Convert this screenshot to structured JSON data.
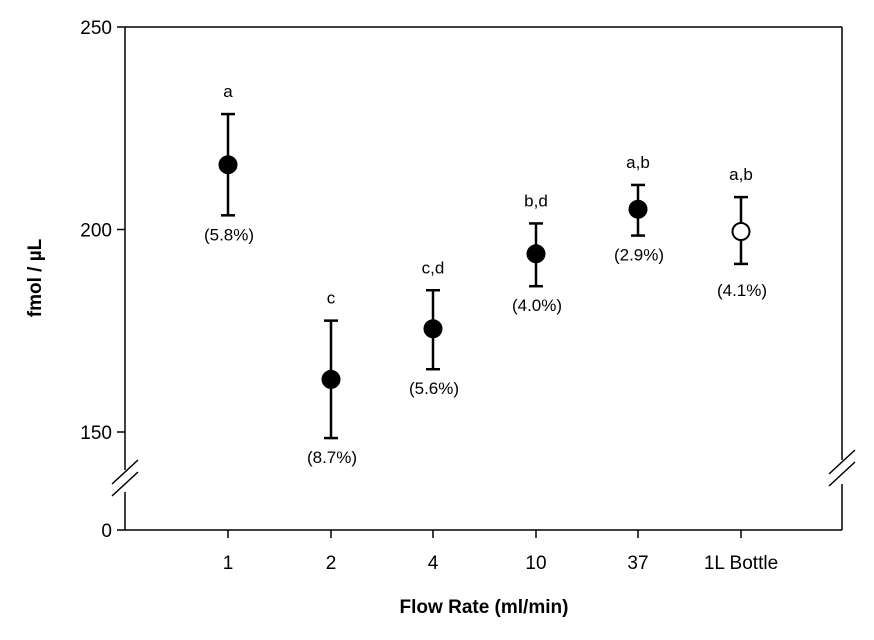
{
  "chart_data": {
    "type": "scatter",
    "xlabel": "Flow Rate (ml/min)",
    "ylabel": "fmol / µL",
    "categories": [
      "1",
      "2",
      "4",
      "10",
      "37",
      "1L Bottle"
    ],
    "ylim": [
      0,
      250
    ],
    "y_axis_break": [
      0,
      150
    ],
    "y_ticks": [
      "0",
      "150",
      "200",
      "250"
    ],
    "series": [
      {
        "values": [
          216,
          163,
          175.5,
          194,
          205,
          199.5
        ],
        "error_low": [
          203.5,
          148.5,
          165.5,
          186,
          198.5,
          191.5
        ],
        "error_high": [
          228.5,
          177.5,
          185,
          201.5,
          211,
          208
        ],
        "marker_fill": [
          "filled",
          "filled",
          "filled",
          "filled",
          "filled",
          "open"
        ],
        "significance_labels": [
          "a",
          "c",
          "c,d",
          "b,d",
          "a,b",
          "a,b"
        ],
        "cv_labels": [
          "(5.8%)",
          "(8.7%)",
          "(5.6%)",
          "(4.0%)",
          "(2.9%)",
          "(4.1%)"
        ]
      }
    ],
    "grid": false,
    "legend": "none"
  }
}
